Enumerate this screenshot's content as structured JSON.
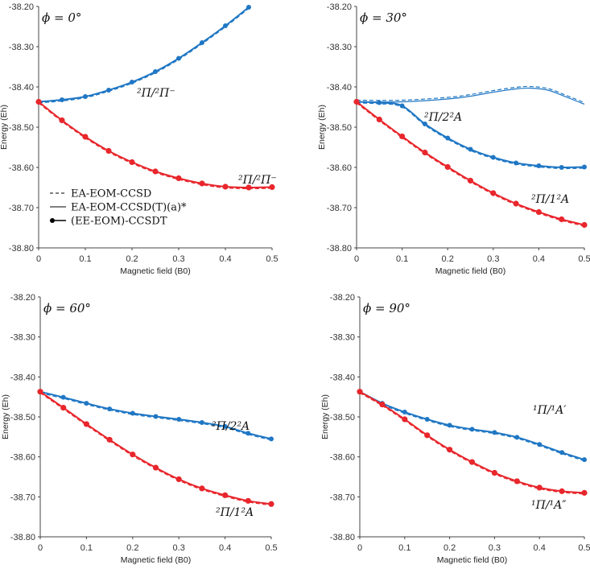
{
  "chart_data": [
    {
      "type": "line",
      "title": "ϕ = 0°",
      "xlabel": "Magnetic field (B0)",
      "ylabel": "Energy (Eh)",
      "xlim": [
        0,
        0.5
      ],
      "ylim": [
        -38.8,
        -38.2
      ],
      "x_ticks": [
        "0",
        "0.1",
        "0.2",
        "0.3",
        "0.4",
        "0.5"
      ],
      "y_ticks": [
        "-38.20",
        "-38.30",
        "-38.40",
        "-38.50",
        "-38.60",
        "-38.70",
        "-38.80"
      ],
      "legend": [
        "EA-EOM-CCSD",
        "EA-EOM-CCSD(T)(a)*",
        "(EE-EOM)-CCSDT"
      ],
      "annotations": [
        {
          "text": "²Π/²Π⁻",
          "near_series": "blue"
        },
        {
          "text": "²Π/²Π⁻",
          "near_series": "red"
        }
      ],
      "series": [
        {
          "name": "blue CCSDT",
          "color": "#1f77c4",
          "x": [
            0,
            0.05,
            0.1,
            0.15,
            0.2,
            0.25,
            0.3,
            0.35,
            0.4,
            0.45
          ],
          "y": [
            -38.437,
            -38.432,
            -38.424,
            -38.408,
            -38.388,
            -38.362,
            -38.329,
            -38.29,
            -38.248,
            -38.202
          ]
        },
        {
          "name": "red CCSDT",
          "color": "#e8262c",
          "x": [
            0,
            0.05,
            0.1,
            0.15,
            0.2,
            0.25,
            0.3,
            0.35,
            0.4,
            0.45,
            0.5
          ],
          "y": [
            -38.437,
            -38.483,
            -38.524,
            -38.559,
            -38.587,
            -38.61,
            -38.627,
            -38.64,
            -38.648,
            -38.65,
            -38.649
          ]
        }
      ]
    },
    {
      "type": "line",
      "title": "ϕ = 30°",
      "xlabel": "Magnetic field (B0)",
      "ylabel": "Energy (Eh)",
      "xlim": [
        0,
        0.5
      ],
      "ylim": [
        -38.8,
        -38.2
      ],
      "x_ticks": [
        "0",
        "0.1",
        "0.2",
        "0.3",
        "0.4",
        "0.5"
      ],
      "y_ticks": [
        "-38.20",
        "-38.30",
        "-38.40",
        "-38.50",
        "-38.60",
        "-38.70",
        "-38.80"
      ],
      "annotations": [
        {
          "text": "²Π/2²A",
          "near_series": "blue"
        },
        {
          "text": "²Π/1²A",
          "near_series": "red"
        }
      ],
      "series": [
        {
          "name": "upper EA-EOM lines (no markers)",
          "color": "#1f77c4",
          "x": [
            0,
            0.1,
            0.2,
            0.25,
            0.3,
            0.35,
            0.38,
            0.42,
            0.46,
            0.5
          ],
          "y": [
            -38.437,
            -38.437,
            -38.43,
            -38.423,
            -38.413,
            -38.405,
            -38.403,
            -38.408,
            -38.425,
            -38.443
          ]
        },
        {
          "name": "blue CCSDT",
          "color": "#1f77c4",
          "x": [
            0,
            0.05,
            0.1,
            0.15,
            0.2,
            0.25,
            0.3,
            0.35,
            0.4,
            0.45,
            0.5
          ],
          "y": [
            -38.437,
            -38.439,
            -38.447,
            -38.492,
            -38.527,
            -38.555,
            -38.575,
            -38.589,
            -38.596,
            -38.6,
            -38.599
          ]
        },
        {
          "name": "red CCSDT",
          "color": "#e8262c",
          "x": [
            0,
            0.05,
            0.1,
            0.15,
            0.2,
            0.25,
            0.3,
            0.35,
            0.4,
            0.45,
            0.5
          ],
          "y": [
            -38.437,
            -38.481,
            -38.523,
            -38.563,
            -38.599,
            -38.633,
            -38.664,
            -38.69,
            -38.711,
            -38.729,
            -38.743
          ]
        }
      ]
    },
    {
      "type": "line",
      "title": "ϕ = 60°",
      "xlabel": "Magnetic field (B0)",
      "ylabel": "Energy (Eh)",
      "xlim": [
        0,
        0.5
      ],
      "ylim": [
        -38.8,
        -38.2
      ],
      "x_ticks": [
        "0",
        "0.1",
        "0.2",
        "0.3",
        "0.4",
        "0.5"
      ],
      "y_ticks": [
        "-38.20",
        "-38.30",
        "-38.40",
        "-38.50",
        "-38.60",
        "-38.70",
        "-38.80"
      ],
      "annotations": [
        {
          "text": "²Π/2²A",
          "near_series": "blue"
        },
        {
          "text": "²Π/1²A",
          "near_series": "red"
        }
      ],
      "series": [
        {
          "name": "blue CCSDT",
          "color": "#1f77c4",
          "x": [
            0,
            0.05,
            0.1,
            0.15,
            0.2,
            0.25,
            0.3,
            0.35,
            0.4,
            0.45,
            0.5
          ],
          "y": [
            -38.437,
            -38.451,
            -38.466,
            -38.48,
            -38.491,
            -38.499,
            -38.506,
            -38.514,
            -38.524,
            -38.541,
            -38.555
          ]
        },
        {
          "name": "red CCSDT",
          "color": "#e8262c",
          "x": [
            0,
            0.05,
            0.1,
            0.15,
            0.2,
            0.25,
            0.3,
            0.35,
            0.4,
            0.45,
            0.5
          ],
          "y": [
            -38.437,
            -38.477,
            -38.518,
            -38.557,
            -38.594,
            -38.627,
            -38.656,
            -38.679,
            -38.696,
            -38.71,
            -38.718
          ]
        }
      ]
    },
    {
      "type": "line",
      "title": "ϕ = 90°",
      "xlabel": "Magnetic field (B0)",
      "ylabel": "Energy (Eh)",
      "xlim": [
        0,
        0.5
      ],
      "ylim": [
        -38.8,
        -38.2
      ],
      "x_ticks": [
        "0",
        "0.1",
        "0.2",
        "0.3",
        "0.4",
        "0.5"
      ],
      "y_ticks": [
        "-38.20",
        "-38.30",
        "-38.40",
        "-38.50",
        "-38.60",
        "-38.70",
        "-38.80"
      ],
      "annotations": [
        {
          "text": "¹Π/¹A′",
          "near_series": "blue"
        },
        {
          "text": "¹Π/¹A″",
          "near_series": "red"
        }
      ],
      "series": [
        {
          "name": "blue CCSDT",
          "color": "#1f77c4",
          "x": [
            0,
            0.05,
            0.1,
            0.15,
            0.2,
            0.25,
            0.3,
            0.35,
            0.4,
            0.45,
            0.5
          ],
          "y": [
            -38.437,
            -38.466,
            -38.488,
            -38.506,
            -38.521,
            -38.531,
            -38.539,
            -38.551,
            -38.569,
            -38.589,
            -38.607
          ]
        },
        {
          "name": "red CCSDT",
          "color": "#e8262c",
          "x": [
            0,
            0.05,
            0.1,
            0.15,
            0.2,
            0.25,
            0.3,
            0.35,
            0.4,
            0.45,
            0.5
          ],
          "y": [
            -38.437,
            -38.469,
            -38.506,
            -38.546,
            -38.582,
            -38.613,
            -38.64,
            -38.661,
            -38.677,
            -38.686,
            -38.69
          ]
        }
      ]
    }
  ]
}
